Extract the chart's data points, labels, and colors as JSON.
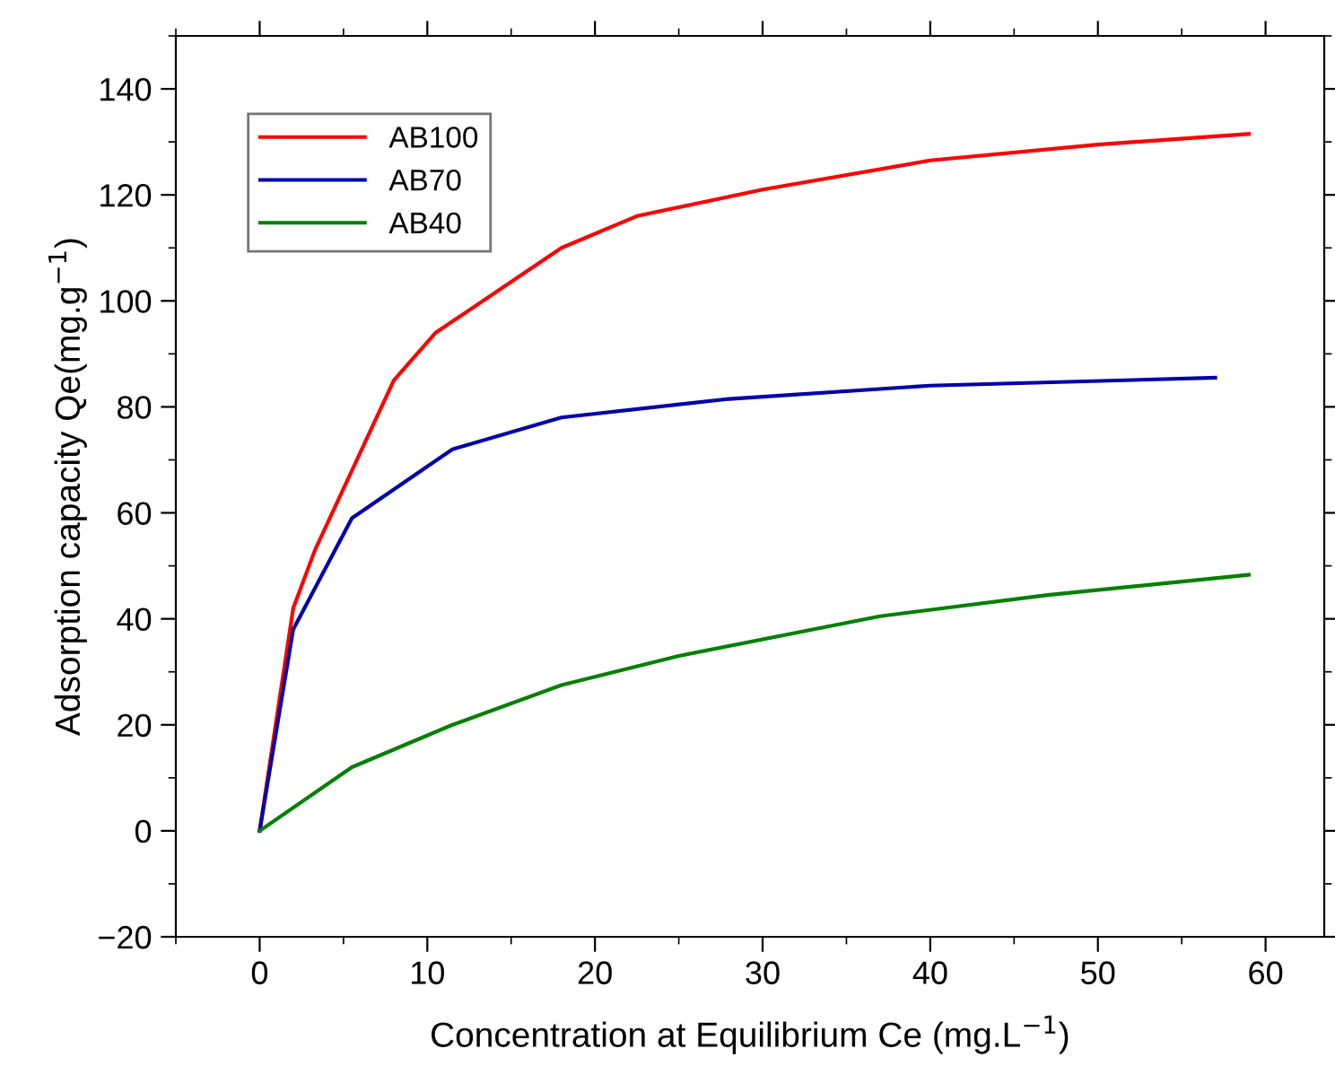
{
  "chart_data": {
    "type": "line",
    "xlabel": "Concentration at Equilibrium Ce (mg.L$^{−1}$)",
    "ylabel": "Adsorption capacity Qe(mg.g$^{−1}$)",
    "xlim": [
      -5,
      63.5
    ],
    "ylim": [
      -20,
      150
    ],
    "xticks": [
      0,
      10,
      20,
      30,
      40,
      50,
      60
    ],
    "yticks": [
      -20,
      0,
      20,
      40,
      60,
      80,
      100,
      120,
      140
    ],
    "grid": false,
    "legend": "top left",
    "marker": "none",
    "line_style": "solid",
    "series": [
      {
        "name": "AB100",
        "color": "#ff0000",
        "x": [
          0,
          2,
          3.3,
          8,
          10.5,
          18,
          22.5,
          30,
          40,
          50,
          59
        ],
        "values": [
          0,
          42,
          53,
          85,
          94,
          110,
          116,
          121,
          126.5,
          129.5,
          131.5
        ]
      },
      {
        "name": "AB70",
        "color": "#0000aa",
        "x": [
          0,
          2,
          5.5,
          11.5,
          18,
          28,
          40,
          57
        ],
        "values": [
          0,
          38,
          59,
          72,
          78,
          81.5,
          84,
          85.5
        ]
      },
      {
        "name": "AB40",
        "color": "#008000",
        "x": [
          0,
          5.5,
          11.5,
          18,
          25,
          37,
          47,
          59
        ],
        "values": [
          0,
          12,
          20,
          27.5,
          33,
          40.5,
          44.5,
          48.3
        ]
      }
    ]
  }
}
